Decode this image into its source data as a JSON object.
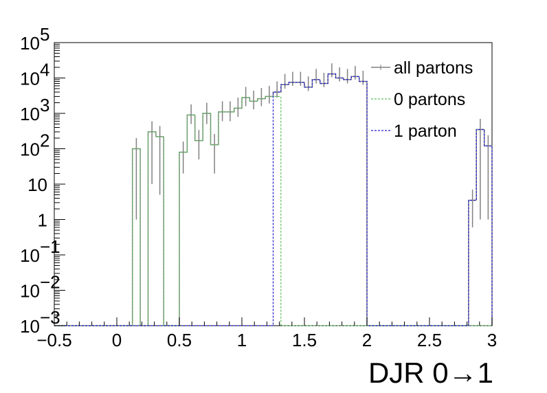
{
  "chart_data": {
    "type": "histogram",
    "xlabel": "DJR 0→1",
    "ylabel": "",
    "xlim": [
      -0.5,
      3.0
    ],
    "ylim": [
      0.001,
      100000
    ],
    "yscale": "log",
    "bin_width": 0.0625,
    "x_ticks": [
      -0.5,
      0,
      0.5,
      1,
      1.5,
      2,
      2.5,
      3
    ],
    "x_tick_labels": [
      "−0.5",
      "0",
      "0.5",
      "1",
      "1.5",
      "2",
      "2.5",
      "3"
    ],
    "y_ticks": [
      {
        "value": 0.001,
        "base": "10",
        "exp": "−3"
      },
      {
        "value": 0.01,
        "base": "10",
        "exp": "−2"
      },
      {
        "value": 0.1,
        "base": "10",
        "exp": "−1"
      },
      {
        "value": 1,
        "base": "1",
        "exp": ""
      },
      {
        "value": 10,
        "base": "10",
        "exp": ""
      },
      {
        "value": 100,
        "base": "10",
        "exp": "2"
      },
      {
        "value": 1000,
        "base": "10",
        "exp": "3"
      },
      {
        "value": 10000,
        "base": "10",
        "exp": "4"
      },
      {
        "value": 100000,
        "base": "10",
        "exp": "5"
      }
    ],
    "legend_position": "top-right",
    "grid": false,
    "series": [
      {
        "name": "all partons",
        "color": "#808080",
        "style": "solid-errorbar",
        "x_centers": [
          0.156,
          0.281,
          0.344,
          0.406,
          0.531,
          0.594,
          0.656,
          0.719,
          0.781,
          0.844,
          0.906,
          0.969,
          1.031,
          1.094,
          1.156,
          1.219,
          1.281,
          1.344,
          1.406,
          1.469,
          1.531,
          1.594,
          1.656,
          1.719,
          1.781,
          1.844,
          1.906,
          1.969,
          2.844,
          2.906,
          2.969
        ],
        "values": [
          100,
          300,
          220,
          0,
          80,
          900,
          170,
          1000,
          130,
          1100,
          1100,
          1400,
          2800,
          2200,
          2600,
          3000,
          4000,
          6500,
          7500,
          7500,
          5500,
          9000,
          7000,
          13000,
          10000,
          9000,
          11000,
          8000,
          3.5,
          350,
          120
        ],
        "errors_low": [
          99,
          290,
          215,
          0,
          60,
          400,
          120,
          500,
          110,
          500,
          500,
          600,
          1200,
          900,
          1000,
          1100,
          1200,
          1500,
          1500,
          1500,
          1200,
          2000,
          1500,
          2500,
          2000,
          2000,
          2000,
          1600,
          2.9,
          349,
          119
        ],
        "errors_high": [
          100,
          300,
          220,
          0,
          80,
          900,
          170,
          1000,
          130,
          1100,
          1100,
          1400,
          2800,
          2200,
          2600,
          3000,
          4000,
          6500,
          7500,
          7500,
          5500,
          9000,
          7000,
          13000,
          10000,
          9000,
          11000,
          8000,
          3.5,
          350,
          120
        ]
      },
      {
        "name": "0 partons",
        "color": "#5bbf5b",
        "style": "dashed",
        "x_centers": [
          0.156,
          0.281,
          0.344,
          0.531,
          0.594,
          0.656,
          0.719,
          0.781,
          0.844,
          0.906,
          0.969,
          1.031,
          1.094,
          1.156,
          1.219,
          1.281
        ],
        "values": [
          100,
          300,
          220,
          80,
          900,
          170,
          1000,
          130,
          1100,
          1100,
          1400,
          2800,
          2200,
          2600,
          3000,
          3000
        ]
      },
      {
        "name": "1 parton",
        "color": "#1a1acc",
        "style": "dashed",
        "x_centers": [
          1.281,
          1.344,
          1.406,
          1.469,
          1.531,
          1.594,
          1.656,
          1.719,
          1.781,
          1.844,
          1.906,
          1.969,
          2.844,
          2.906,
          2.969
        ],
        "values": [
          4000,
          6500,
          7500,
          7500,
          5500,
          9000,
          7000,
          13000,
          10000,
          9000,
          11000,
          8000,
          3.5,
          350,
          120
        ]
      }
    ]
  }
}
